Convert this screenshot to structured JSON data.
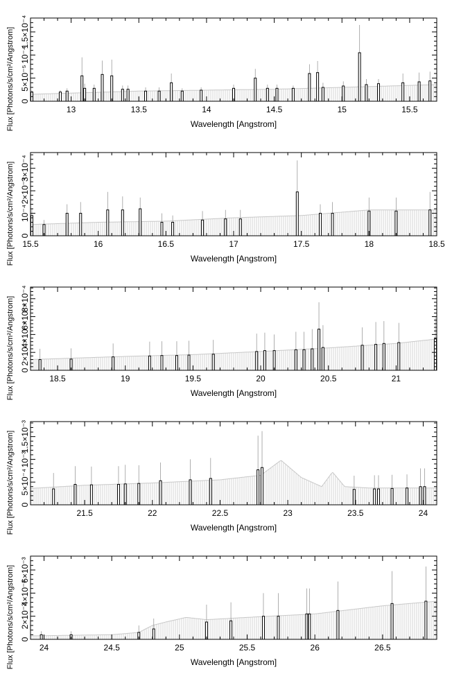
{
  "chart_data": [
    {
      "type": "bar",
      "xlabel": "Wavelength [Angstrom]",
      "ylabel": "Flux [Photons/s/cm²/Angstrom]",
      "xlim": [
        12.7,
        15.7
      ],
      "ylim": [
        0,
        0.00018
      ],
      "x_ticks": [
        "13",
        "13.5",
        "14",
        "14.5",
        "15",
        "15.5"
      ],
      "x_tick_values": [
        13,
        13.5,
        14,
        14.5,
        15,
        15.5
      ],
      "y_ticks": [
        "0",
        "5×10⁻⁵",
        "10⁻⁴",
        "1.5×10⁻⁴"
      ],
      "y_tick_values": [
        0,
        5e-05,
        0.0001,
        0.00015
      ],
      "continuum": [
        [
          12.7,
          1.5e-05
        ],
        [
          13.5,
          2.2e-05
        ],
        [
          14.5,
          2.6e-05
        ],
        [
          15.0,
          3e-05
        ],
        [
          15.7,
          3.6e-05
        ]
      ],
      "lines": [
        {
          "x": 12.71,
          "y": 2e-05,
          "err": 4e-06
        },
        {
          "x": 12.92,
          "y": 2e-05,
          "err": 4e-06
        },
        {
          "x": 12.97,
          "y": 2.2e-05,
          "err": 6e-06
        },
        {
          "x": 13.08,
          "y": 5.5e-05,
          "err": 4e-05
        },
        {
          "x": 13.1,
          "y": 2.8e-05,
          "err": 1e-05
        },
        {
          "x": 13.17,
          "y": 2.8e-05,
          "err": 8e-06
        },
        {
          "x": 13.23,
          "y": 5.8e-05,
          "err": 3e-05
        },
        {
          "x": 13.3,
          "y": 5.5e-05,
          "err": 3.5e-05
        },
        {
          "x": 13.38,
          "y": 2.6e-05,
          "err": 8e-06
        },
        {
          "x": 13.42,
          "y": 2.6e-05,
          "err": 8e-06
        },
        {
          "x": 13.55,
          "y": 2.2e-05,
          "err": 8e-06
        },
        {
          "x": 13.65,
          "y": 2.2e-05,
          "err": 8e-06
        },
        {
          "x": 13.74,
          "y": 4e-05,
          "err": 2e-05
        },
        {
          "x": 13.82,
          "y": 2.2e-05,
          "err": 6e-06
        },
        {
          "x": 13.96,
          "y": 2.4e-05,
          "err": 6e-06
        },
        {
          "x": 14.2,
          "y": 2.8e-05,
          "err": 8e-06
        },
        {
          "x": 14.36,
          "y": 5e-05,
          "err": 2e-05
        },
        {
          "x": 14.45,
          "y": 2.8e-05,
          "err": 8e-06
        },
        {
          "x": 14.52,
          "y": 2.8e-05,
          "err": 8e-06
        },
        {
          "x": 14.64,
          "y": 2.8e-05,
          "err": 6e-06
        },
        {
          "x": 14.76,
          "y": 6e-05,
          "err": 2e-05
        },
        {
          "x": 14.82,
          "y": 6.2e-05,
          "err": 2.5e-05
        },
        {
          "x": 14.86,
          "y": 3e-05,
          "err": 1e-05
        },
        {
          "x": 15.01,
          "y": 3.3e-05,
          "err": 1e-05
        },
        {
          "x": 15.13,
          "y": 0.000105,
          "err": 6e-05
        },
        {
          "x": 15.18,
          "y": 3.6e-05,
          "err": 1.2e-05
        },
        {
          "x": 15.27,
          "y": 3.8e-05,
          "err": 1e-05
        },
        {
          "x": 15.45,
          "y": 4e-05,
          "err": 2e-05
        },
        {
          "x": 15.57,
          "y": 4.2e-05,
          "err": 2e-05
        },
        {
          "x": 15.65,
          "y": 4.4e-05,
          "err": 2e-05
        }
      ]
    },
    {
      "type": "bar",
      "xlabel": "Wavelength [Angstrom]",
      "ylabel": "Flux [Photons/s/cm²/Angstrom]",
      "xlim": [
        15.5,
        18.5
      ],
      "ylim": [
        0,
        0.00037
      ],
      "x_ticks": [
        "15.5",
        "16",
        "16.5",
        "17",
        "17.5",
        "18",
        "18.5"
      ],
      "x_tick_values": [
        15.5,
        16,
        16.5,
        17,
        17.5,
        18,
        18.5
      ],
      "y_ticks": [
        "0",
        "10⁻⁴",
        "2×10⁻⁴",
        "3×10⁻⁴"
      ],
      "y_tick_values": [
        0,
        0.0001,
        0.0002,
        0.0003
      ],
      "continuum": [
        [
          15.5,
          5e-05
        ],
        [
          16.0,
          6e-05
        ],
        [
          16.5,
          6.5e-05
        ],
        [
          17.0,
          8e-05
        ],
        [
          17.5,
          9e-05
        ],
        [
          18.0,
          0.000115
        ],
        [
          18.5,
          0.000115
        ]
      ],
      "lines": [
        {
          "x": 15.51,
          "y": 9e-05,
          "err": 3e-05
        },
        {
          "x": 15.6,
          "y": 5e-05,
          "err": 2e-05
        },
        {
          "x": 15.77,
          "y": 0.0001,
          "err": 4e-05
        },
        {
          "x": 15.87,
          "y": 0.0001,
          "err": 5e-05
        },
        {
          "x": 16.07,
          "y": 0.000115,
          "err": 8e-05
        },
        {
          "x": 16.18,
          "y": 0.000115,
          "err": 6e-05
        },
        {
          "x": 16.31,
          "y": 0.00012,
          "err": 5e-05
        },
        {
          "x": 16.47,
          "y": 6e-05,
          "err": 4e-05
        },
        {
          "x": 16.55,
          "y": 6e-05,
          "err": 3e-05
        },
        {
          "x": 16.77,
          "y": 7e-05,
          "err": 4e-05
        },
        {
          "x": 16.94,
          "y": 7.5e-05,
          "err": 4e-05
        },
        {
          "x": 17.05,
          "y": 7.5e-05,
          "err": 4e-05
        },
        {
          "x": 17.47,
          "y": 0.000195,
          "err": 0.00014
        },
        {
          "x": 17.64,
          "y": 0.0001,
          "err": 4e-05
        },
        {
          "x": 17.73,
          "y": 0.0001,
          "err": 5e-05
        },
        {
          "x": 18.0,
          "y": 0.00011,
          "err": 6e-05
        },
        {
          "x": 18.2,
          "y": 0.00011,
          "err": 6e-05
        },
        {
          "x": 18.45,
          "y": 0.000115,
          "err": 8e-05
        }
      ]
    },
    {
      "type": "bar",
      "xlabel": "Wavelength [Angstrom]",
      "ylabel": "Flux [Photons/s/cm²/Angstrom]",
      "xlim": [
        18.3,
        21.3
      ],
      "ylim": [
        0,
        0.00093
      ],
      "x_ticks": [
        "18.5",
        "19",
        "19.5",
        "20",
        "20.5",
        "21"
      ],
      "x_tick_values": [
        18.5,
        19,
        19.5,
        20,
        20.5,
        21
      ],
      "y_ticks": [
        "0",
        "2×10⁻⁴",
        "4×10⁻⁴",
        "6×10⁻⁴",
        "8×10⁻⁴"
      ],
      "y_tick_values": [
        0,
        0.0002,
        0.0004,
        0.0006,
        0.0008
      ],
      "continuum": [
        [
          18.3,
          0.00012
        ],
        [
          19.0,
          0.000155
        ],
        [
          19.5,
          0.000175
        ],
        [
          20.0,
          0.00021
        ],
        [
          20.5,
          0.00025
        ],
        [
          21.0,
          0.0003
        ],
        [
          21.3,
          0.00035
        ]
      ],
      "lines": [
        {
          "x": 18.37,
          "y": 0.00012,
          "err": 0.00012
        },
        {
          "x": 18.6,
          "y": 0.000125,
          "err": 0.00012
        },
        {
          "x": 18.91,
          "y": 0.00015,
          "err": 0.00015
        },
        {
          "x": 19.18,
          "y": 0.00016,
          "err": 0.00016
        },
        {
          "x": 19.27,
          "y": 0.000165,
          "err": 0.00016
        },
        {
          "x": 19.38,
          "y": 0.000165,
          "err": 0.00016
        },
        {
          "x": 19.47,
          "y": 0.00017,
          "err": 0.00016
        },
        {
          "x": 19.65,
          "y": 0.00018,
          "err": 0.00016
        },
        {
          "x": 19.97,
          "y": 0.00021,
          "err": 0.0002
        },
        {
          "x": 20.03,
          "y": 0.00022,
          "err": 0.0002
        },
        {
          "x": 20.1,
          "y": 0.00022,
          "err": 0.00018
        },
        {
          "x": 20.26,
          "y": 0.00023,
          "err": 0.0002
        },
        {
          "x": 20.32,
          "y": 0.00023,
          "err": 0.0002
        },
        {
          "x": 20.38,
          "y": 0.00024,
          "err": 0.00022
        },
        {
          "x": 20.43,
          "y": 0.00046,
          "err": 0.0003
        },
        {
          "x": 20.46,
          "y": 0.000255,
          "err": 0.00025
        },
        {
          "x": 20.75,
          "y": 0.00028,
          "err": 0.0002
        },
        {
          "x": 20.85,
          "y": 0.00029,
          "err": 0.00025
        },
        {
          "x": 20.91,
          "y": 0.0003,
          "err": 0.00025
        },
        {
          "x": 21.02,
          "y": 0.00031,
          "err": 0.00022
        },
        {
          "x": 21.29,
          "y": 0.00035,
          "err": 0.00025
        }
      ]
    },
    {
      "type": "bar",
      "xlabel": "Wavelength [Angstrom]",
      "ylabel": "Flux [Photons/s/cm²/Angstrom]",
      "xlim": [
        21.1,
        24.1
      ],
      "ylim": [
        0,
        0.00183
      ],
      "x_ticks": [
        "21.5",
        "22",
        "22.5",
        "23",
        "23.5",
        "24"
      ],
      "x_tick_values": [
        21.5,
        22,
        22.5,
        23,
        23.5,
        24
      ],
      "y_ticks": [
        "0",
        "5×10⁻⁴",
        "10⁻³",
        "1.5×10⁻³"
      ],
      "y_tick_values": [
        0,
        0.0005,
        0.001,
        0.0015
      ],
      "continuum": [
        [
          21.1,
          0.00036
        ],
        [
          21.5,
          0.00043
        ],
        [
          22.0,
          0.00048
        ],
        [
          22.5,
          0.00055
        ],
        [
          22.8,
          0.00065
        ],
        [
          22.95,
          0.00098
        ],
        [
          23.1,
          0.0006
        ],
        [
          23.25,
          0.0004
        ],
        [
          23.33,
          0.00072
        ],
        [
          23.42,
          0.0004
        ],
        [
          23.6,
          0.00037
        ],
        [
          24.1,
          0.00037
        ]
      ],
      "lines": [
        {
          "x": 21.27,
          "y": 0.00035,
          "err": 0.00035
        },
        {
          "x": 21.43,
          "y": 0.00045,
          "err": 0.0004
        },
        {
          "x": 21.55,
          "y": 0.00044,
          "err": 0.0004
        },
        {
          "x": 21.75,
          "y": 0.00045,
          "err": 0.0004
        },
        {
          "x": 21.8,
          "y": 0.00046,
          "err": 0.00042
        },
        {
          "x": 21.9,
          "y": 0.00047,
          "err": 0.0004
        },
        {
          "x": 22.06,
          "y": 0.00053,
          "err": 0.0004
        },
        {
          "x": 22.28,
          "y": 0.00055,
          "err": 0.00045
        },
        {
          "x": 22.43,
          "y": 0.00058,
          "err": 0.00045
        },
        {
          "x": 22.78,
          "y": 0.00077,
          "err": 0.00075
        },
        {
          "x": 22.81,
          "y": 0.00082,
          "err": 0.0008
        },
        {
          "x": 23.49,
          "y": 0.00034,
          "err": 0.0003
        },
        {
          "x": 23.64,
          "y": 0.00035,
          "err": 0.0003
        },
        {
          "x": 23.67,
          "y": 0.00035,
          "err": 0.0003
        },
        {
          "x": 23.77,
          "y": 0.00036,
          "err": 0.0003
        },
        {
          "x": 23.88,
          "y": 0.00037,
          "err": 0.0003
        },
        {
          "x": 23.98,
          "y": 0.0004,
          "err": 0.0004
        },
        {
          "x": 24.01,
          "y": 0.0004,
          "err": 0.0004
        }
      ]
    },
    {
      "type": "bar",
      "xlabel": "Wavelength [Angstrom]",
      "ylabel": "Flux [Photons/s/cm²/Angstrom]",
      "xlim": [
        23.9,
        26.9
      ],
      "ylim": [
        0,
        0.0072
      ],
      "x_ticks": [
        "24",
        "24.5",
        "25",
        "25.5",
        "26",
        "26.5"
      ],
      "x_tick_values": [
        24,
        24.5,
        25,
        25.5,
        26,
        26.5
      ],
      "y_ticks": [
        "0",
        "2×10⁻³",
        "4×10⁻³",
        "6×10⁻³"
      ],
      "y_tick_values": [
        0,
        0.002,
        0.004,
        0.006
      ],
      "continuum": [
        [
          23.9,
          0.0003
        ],
        [
          24.5,
          0.0004
        ],
        [
          24.7,
          0.0006
        ],
        [
          24.8,
          0.0012
        ],
        [
          24.9,
          0.0015
        ],
        [
          25.05,
          0.0019
        ],
        [
          25.2,
          0.0017
        ],
        [
          25.5,
          0.0019
        ],
        [
          26.0,
          0.0022
        ],
        [
          26.5,
          0.0029
        ],
        [
          26.9,
          0.0033
        ]
      ],
      "lines": [
        {
          "x": 23.98,
          "y": 0.0004,
          "err": 0.0003
        },
        {
          "x": 24.2,
          "y": 0.0004,
          "err": 0.0003
        },
        {
          "x": 24.7,
          "y": 0.0006,
          "err": 0.0006
        },
        {
          "x": 24.81,
          "y": 0.0009,
          "err": 0.0009
        },
        {
          "x": 25.2,
          "y": 0.0015,
          "err": 0.0015
        },
        {
          "x": 25.38,
          "y": 0.0016,
          "err": 0.0016
        },
        {
          "x": 25.62,
          "y": 0.002,
          "err": 0.002
        },
        {
          "x": 25.73,
          "y": 0.002,
          "err": 0.002
        },
        {
          "x": 25.94,
          "y": 0.0022,
          "err": 0.0022
        },
        {
          "x": 25.96,
          "y": 0.0022,
          "err": 0.0022
        },
        {
          "x": 26.17,
          "y": 0.0025,
          "err": 0.0025
        },
        {
          "x": 26.57,
          "y": 0.0031,
          "err": 0.0028
        },
        {
          "x": 26.82,
          "y": 0.0033,
          "err": 0.003
        }
      ]
    }
  ]
}
